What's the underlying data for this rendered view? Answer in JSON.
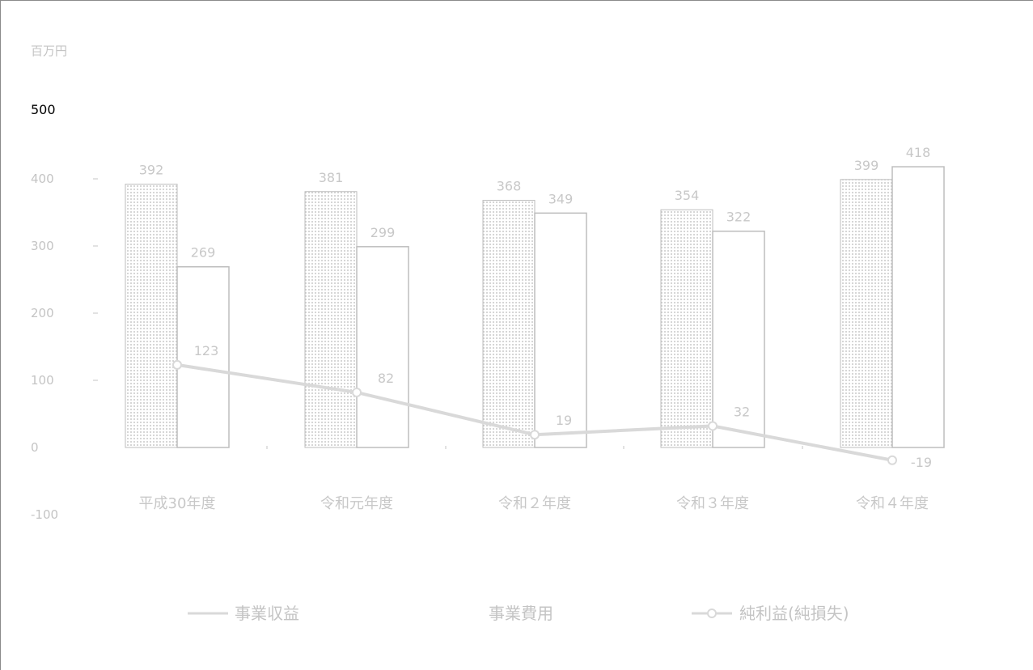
{
  "chart_data": {
    "type": "bar",
    "unit_label": "百万円",
    "categories": [
      "平成30年度",
      "令和元年度",
      "令和２年度",
      "令和３年度",
      "令和４年度"
    ],
    "series": [
      {
        "name": "事業収益",
        "type": "bar",
        "pattern": "dotted",
        "values": [
          392,
          381,
          368,
          354,
          399
        ]
      },
      {
        "name": "事業費用",
        "type": "bar",
        "pattern": "plain",
        "values": [
          269,
          299,
          349,
          322,
          418
        ]
      },
      {
        "name": "純利益(純損失)",
        "type": "line",
        "values": [
          123,
          82,
          19,
          32,
          -19
        ]
      }
    ],
    "value_labels": {
      "revenue": [
        "392",
        "381",
        "368",
        "354",
        "399"
      ],
      "expense": [
        "269",
        "299",
        "349",
        "322",
        "418"
      ],
      "profit": [
        "123",
        "82",
        "19",
        "32",
        "-19"
      ]
    },
    "y_ticks": [
      "500",
      "400",
      "300",
      "200",
      "100",
      "0",
      "-100"
    ],
    "ylim": [
      -100,
      500
    ],
    "legend": [
      "事業収益",
      "事業費用",
      "純利益(純損失)"
    ],
    "legend_position": "bottom",
    "grid": false,
    "colors": {
      "bar_stroke": "#bdbdbd",
      "dot": "#c9c9c9",
      "line": "#d9d9d9",
      "text": "#c4c4c4",
      "frame": "#8a8a8a"
    }
  }
}
